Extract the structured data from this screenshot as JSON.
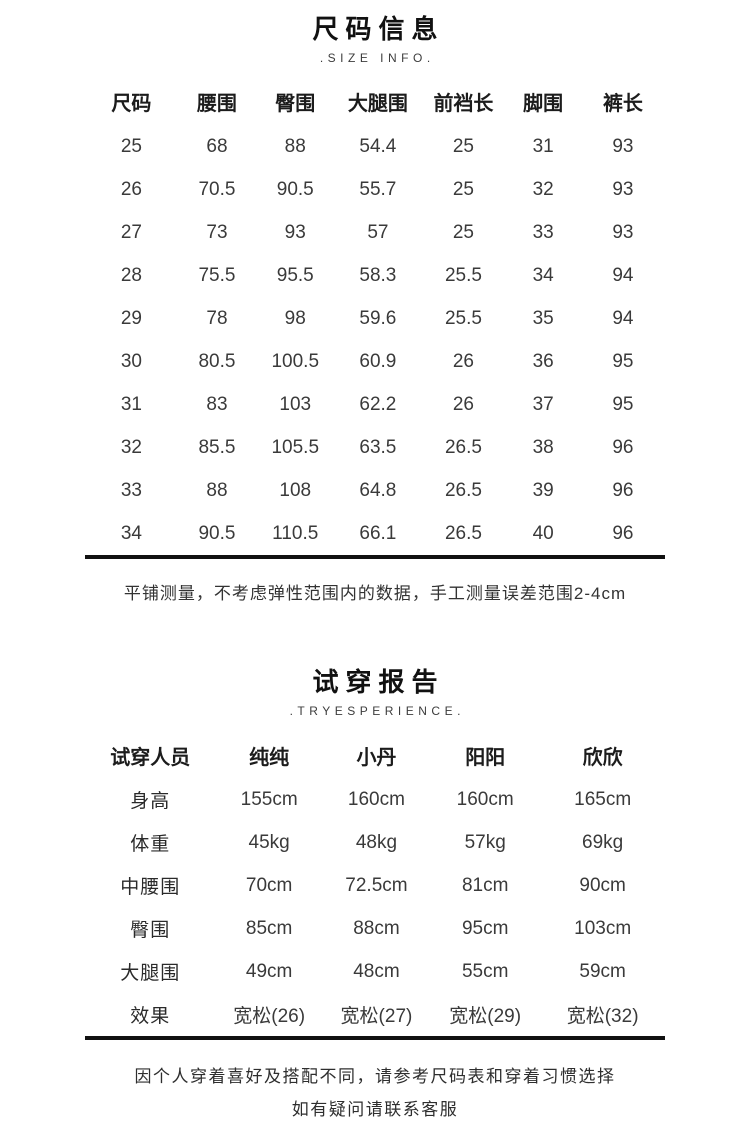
{
  "size_info": {
    "title": "尺码信息",
    "subtitle": ".SIZE INFO.",
    "columns": [
      "尺码",
      "腰围",
      "臀围",
      "大腿围",
      "前裆长",
      "脚围",
      "裤长"
    ],
    "rows": [
      [
        "25",
        "68",
        "88",
        "54.4",
        "25",
        "31",
        "93"
      ],
      [
        "26",
        "70.5",
        "90.5",
        "55.7",
        "25",
        "32",
        "93"
      ],
      [
        "27",
        "73",
        "93",
        "57",
        "25",
        "33",
        "93"
      ],
      [
        "28",
        "75.5",
        "95.5",
        "58.3",
        "25.5",
        "34",
        "94"
      ],
      [
        "29",
        "78",
        "98",
        "59.6",
        "25.5",
        "35",
        "94"
      ],
      [
        "30",
        "80.5",
        "100.5",
        "60.9",
        "26",
        "36",
        "95"
      ],
      [
        "31",
        "83",
        "103",
        "62.2",
        "26",
        "37",
        "95"
      ],
      [
        "32",
        "85.5",
        "105.5",
        "63.5",
        "26.5",
        "38",
        "96"
      ],
      [
        "33",
        "88",
        "108",
        "64.8",
        "26.5",
        "39",
        "96"
      ],
      [
        "34",
        "90.5",
        "110.5",
        "66.1",
        "26.5",
        "40",
        "96"
      ]
    ],
    "note": "平铺测量，不考虑弹性范围内的数据，手工测量误差范围2-4cm"
  },
  "try_on": {
    "title": "试穿报告",
    "subtitle": ".TRYESPERIENCE.",
    "columns": [
      "试穿人员",
      "纯纯",
      "小丹",
      "阳阳",
      "欣欣"
    ],
    "rows": [
      [
        "身高",
        "155cm",
        "160cm",
        "160cm",
        "165cm"
      ],
      [
        "体重",
        "45kg",
        "48kg",
        "57kg",
        "69kg"
      ],
      [
        "中腰围",
        "70cm",
        "72.5cm",
        "81cm",
        "90cm"
      ],
      [
        "臀围",
        "85cm",
        "88cm",
        "95cm",
        "103cm"
      ],
      [
        "大腿围",
        "49cm",
        "48cm",
        "55cm",
        "59cm"
      ],
      [
        "效果",
        "宽松(26)",
        "宽松(27)",
        "宽松(29)",
        "宽松(32)"
      ]
    ]
  },
  "footer": {
    "line1": "因个人穿着喜好及搭配不同，请参考尺码表和穿着习惯选择",
    "line2": "如有疑问请联系客服"
  },
  "colors": {
    "text": "#3a3a3a",
    "heading": "#111111",
    "rule": "#111111",
    "background": "#ffffff"
  }
}
